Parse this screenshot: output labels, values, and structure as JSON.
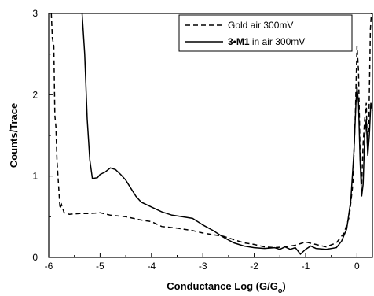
{
  "chart_data": {
    "type": "line",
    "xlabel": "Conductance Log (G/G",
    "xlabel_sub": "o",
    "xlabel_close": ")",
    "ylabel": "Counts/Trace",
    "xlim": [
      -6,
      0.3
    ],
    "ylim": [
      0,
      3
    ],
    "xticks": [
      "-6",
      "-5",
      "-4",
      "-3",
      "-2",
      "-1",
      "0"
    ],
    "yticks": [
      "0",
      "1",
      "2",
      "3"
    ],
    "legend_position": "top-right",
    "grid": false,
    "series": [
      {
        "name": "Gold air 300mV",
        "style": "dashed",
        "color": "#000000",
        "points": [
          [
            -5.95,
            3.0
          ],
          [
            -5.93,
            2.7
          ],
          [
            -5.9,
            2.6
          ],
          [
            -5.88,
            1.75
          ],
          [
            -5.86,
            1.6
          ],
          [
            -5.84,
            1.2
          ],
          [
            -5.8,
            0.8
          ],
          [
            -5.78,
            0.6
          ],
          [
            -5.75,
            0.65
          ],
          [
            -5.7,
            0.55
          ],
          [
            -5.6,
            0.53
          ],
          [
            -5.4,
            0.54
          ],
          [
            -5.2,
            0.54
          ],
          [
            -5.0,
            0.55
          ],
          [
            -4.8,
            0.52
          ],
          [
            -4.5,
            0.5
          ],
          [
            -4.2,
            0.46
          ],
          [
            -4.0,
            0.44
          ],
          [
            -3.8,
            0.38
          ],
          [
            -3.5,
            0.36
          ],
          [
            -3.2,
            0.33
          ],
          [
            -3.0,
            0.3
          ],
          [
            -2.8,
            0.28
          ],
          [
            -2.6,
            0.26
          ],
          [
            -2.4,
            0.22
          ],
          [
            -2.2,
            0.18
          ],
          [
            -2.0,
            0.16
          ],
          [
            -1.8,
            0.13
          ],
          [
            -1.6,
            0.12
          ],
          [
            -1.4,
            0.13
          ],
          [
            -1.2,
            0.15
          ],
          [
            -1.0,
            0.19
          ],
          [
            -0.8,
            0.16
          ],
          [
            -0.6,
            0.13
          ],
          [
            -0.4,
            0.18
          ],
          [
            -0.25,
            0.3
          ],
          [
            -0.15,
            0.5
          ],
          [
            -0.08,
            0.9
          ],
          [
            -0.03,
            1.8
          ],
          [
            0.0,
            2.6
          ],
          [
            0.03,
            2.3
          ],
          [
            0.06,
            1.3
          ],
          [
            0.09,
            0.9
          ],
          [
            0.12,
            1.4
          ],
          [
            0.15,
            1.7
          ],
          [
            0.18,
            1.9
          ],
          [
            0.2,
            1.4
          ],
          [
            0.23,
            1.6
          ],
          [
            0.26,
            2.8
          ],
          [
            0.28,
            3.0
          ]
        ]
      },
      {
        "name": "3•M1 in air 300mV",
        "name_bold": "3•M1",
        "name_rest": " in air 300mV",
        "style": "solid",
        "color": "#000000",
        "points": [
          [
            -5.35,
            3.0
          ],
          [
            -5.3,
            2.5
          ],
          [
            -5.25,
            1.7
          ],
          [
            -5.2,
            1.2
          ],
          [
            -5.15,
            0.97
          ],
          [
            -5.05,
            0.98
          ],
          [
            -5.0,
            1.02
          ],
          [
            -4.9,
            1.05
          ],
          [
            -4.8,
            1.1
          ],
          [
            -4.7,
            1.08
          ],
          [
            -4.6,
            1.02
          ],
          [
            -4.5,
            0.95
          ],
          [
            -4.4,
            0.85
          ],
          [
            -4.3,
            0.75
          ],
          [
            -4.2,
            0.68
          ],
          [
            -4.0,
            0.62
          ],
          [
            -3.8,
            0.56
          ],
          [
            -3.6,
            0.52
          ],
          [
            -3.4,
            0.5
          ],
          [
            -3.2,
            0.48
          ],
          [
            -3.0,
            0.4
          ],
          [
            -2.8,
            0.33
          ],
          [
            -2.6,
            0.25
          ],
          [
            -2.4,
            0.18
          ],
          [
            -2.2,
            0.14
          ],
          [
            -2.0,
            0.12
          ],
          [
            -1.8,
            0.11
          ],
          [
            -1.6,
            0.12
          ],
          [
            -1.5,
            0.1
          ],
          [
            -1.4,
            0.13
          ],
          [
            -1.3,
            0.1
          ],
          [
            -1.2,
            0.12
          ],
          [
            -1.1,
            0.04
          ],
          [
            -1.0,
            0.1
          ],
          [
            -0.9,
            0.14
          ],
          [
            -0.8,
            0.11
          ],
          [
            -0.6,
            0.1
          ],
          [
            -0.4,
            0.12
          ],
          [
            -0.3,
            0.2
          ],
          [
            -0.2,
            0.35
          ],
          [
            -0.12,
            0.7
          ],
          [
            -0.06,
            1.3
          ],
          [
            -0.02,
            1.9
          ],
          [
            0.0,
            2.1
          ],
          [
            0.03,
            1.9
          ],
          [
            0.06,
            1.2
          ],
          [
            0.09,
            0.75
          ],
          [
            0.12,
            0.9
          ],
          [
            0.15,
            1.5
          ],
          [
            0.18,
            1.7
          ],
          [
            0.21,
            1.25
          ],
          [
            0.24,
            1.5
          ],
          [
            0.27,
            1.9
          ],
          [
            0.3,
            1.8
          ]
        ]
      }
    ]
  }
}
